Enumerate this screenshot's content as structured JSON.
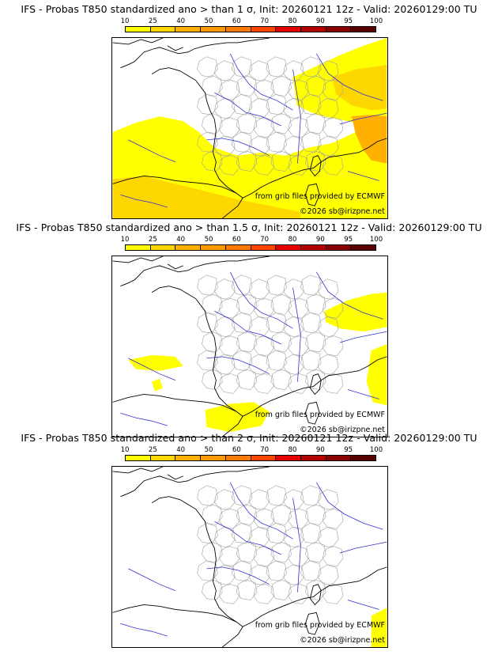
{
  "color_scale": {
    "ticks": [
      "10",
      "25",
      "40",
      "50",
      "60",
      "70",
      "80",
      "90",
      "95",
      "100"
    ],
    "colors": [
      "#ffff00",
      "#ffd700",
      "#ffb000",
      "#ff9900",
      "#ff7a00",
      "#ff4500",
      "#e60000",
      "#b30000",
      "#8b0000",
      "#5a0000"
    ]
  },
  "panels": [
    {
      "title": "IFS - Probas T850  standardized ano > than 1 σ, Init: 20260121 12z - Valid: 20260129:00 TU",
      "credit_source": "from grib files provided by ECMWF",
      "credit_copyright": "©2026 sb@irizpne.net"
    },
    {
      "title": "IFS - Probas T850  standardized ano > than 1.5 σ, Init: 20260121 12z - Valid: 20260129:00 TU",
      "credit_source": "from grib files provided by ECMWF",
      "credit_copyright": "©2026 sb@irizpne.net"
    },
    {
      "title": "IFS - Probas T850  standardized ano > than 2 σ, Init: 20260121 12z - Valid: 20260129:00 TU",
      "credit_source": "from grib files provided by ECMWF",
      "credit_copyright": "©2026 sb@irizpne.net"
    }
  ],
  "map_colors": {
    "coastline": "#000000",
    "rivers": "#3030d0",
    "departments": "#a0a0a0",
    "prob_10": "#ffff00",
    "prob_25": "#ffd700",
    "prob_40": "#ffb000"
  }
}
